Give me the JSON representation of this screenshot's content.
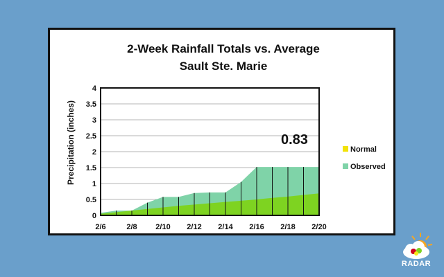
{
  "chart_data": {
    "type": "area",
    "title": [
      "2-Week Rainfall Totals vs. Average",
      "Sault Ste. Marie"
    ],
    "ylabel": "Precipitation (inches)",
    "xlabel": "",
    "x": [
      "2/6",
      "2/7",
      "2/8",
      "2/9",
      "2/10",
      "2/11",
      "2/12",
      "2/13",
      "2/14",
      "2/15",
      "2/16",
      "2/17",
      "2/18",
      "2/19",
      "2/20"
    ],
    "x_tick_labels": [
      "2/6",
      "2/8",
      "2/10",
      "2/12",
      "2/14",
      "2/16",
      "2/18",
      "2/20"
    ],
    "y_ticks": [
      "0",
      "0.5",
      "1",
      "1.5",
      "2",
      "2.5",
      "3",
      "3.5",
      "4"
    ],
    "ylim": [
      0,
      4
    ],
    "series": [
      {
        "name": "Observed",
        "color": "#7fd3a8",
        "values": [
          0.08,
          0.15,
          0.15,
          0.4,
          0.58,
          0.58,
          0.7,
          0.72,
          0.72,
          1.05,
          1.52,
          1.52,
          1.52,
          1.52,
          1.52
        ]
      },
      {
        "name": "Normal",
        "color": "#7ed321",
        "values": [
          0.05,
          0.1,
          0.15,
          0.2,
          0.25,
          0.3,
          0.34,
          0.38,
          0.42,
          0.46,
          0.5,
          0.55,
          0.59,
          0.64,
          0.69
        ]
      }
    ],
    "annotation": "0.83",
    "legend": [
      {
        "label": "Normal",
        "color": "#f2e20a"
      },
      {
        "label": "Observed",
        "color": "#7fd3a8"
      }
    ],
    "legend_position": "right",
    "grid": true
  },
  "branding": {
    "text": "RADAR",
    "icon": "weather-radar-logo-icon"
  }
}
